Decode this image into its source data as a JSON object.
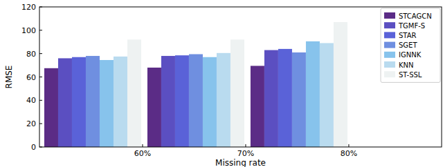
{
  "chart_data": {
    "type": "bar",
    "x_label": "Missing rate",
    "y_label": "RMSE",
    "categories": [
      "60%",
      "70%",
      "80%"
    ],
    "series": [
      {
        "name": "STCAGCN",
        "color": "#5b2c86",
        "values": [
          67.5,
          68,
          69.5
        ]
      },
      {
        "name": "TGMF-S",
        "color": "#5b4fc1",
        "values": [
          76,
          78,
          83
        ]
      },
      {
        "name": "STAR",
        "color": "#5a62d8",
        "values": [
          77,
          78.5,
          84
        ]
      },
      {
        "name": "SGET",
        "color": "#6f8fe0",
        "values": [
          78,
          79.5,
          81
        ]
      },
      {
        "name": "IGNNK",
        "color": "#87c3ec",
        "values": [
          74.5,
          77,
          90.5
        ]
      },
      {
        "name": "KNN",
        "color": "#b9dbef",
        "values": [
          77.5,
          80.5,
          89
        ]
      },
      {
        "name": "ST-SSL",
        "color": "#eef2f2",
        "values": [
          92,
          92,
          107
        ]
      }
    ],
    "ylim": [
      0,
      120
    ],
    "yticks": [
      0,
      20,
      40,
      60,
      80,
      100,
      120
    ],
    "legend": "upper-right",
    "grid": false
  }
}
